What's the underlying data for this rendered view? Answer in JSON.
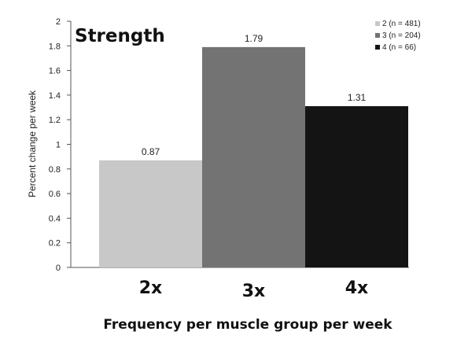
{
  "chart_data": {
    "type": "bar",
    "title": "Strength",
    "xlabel": "Frequency per muscle group per week",
    "ylabel": "Percent change per week",
    "categories": [
      "2x",
      "3x",
      "4x"
    ],
    "values": [
      0.87,
      1.79,
      1.31
    ],
    "value_labels": [
      "0.87",
      "1.79",
      "1.31"
    ],
    "ylim": [
      0,
      2
    ],
    "yticks": [
      0,
      0.2,
      0.4,
      0.6,
      0.8,
      1,
      1.2,
      1.4,
      1.6,
      1.8,
      2
    ],
    "ytick_labels": [
      "0",
      "0.2",
      "0.4",
      "0.6",
      "0.8",
      "1",
      "1.2",
      "1.4",
      "1.6",
      "1.8",
      "2"
    ],
    "grid": false,
    "legend_position": "top-right",
    "legend": [
      {
        "label": "2 (n = 481)",
        "color": "#c8c8c8"
      },
      {
        "label": "3 (n = 204)",
        "color": "#737373"
      },
      {
        "label": "4 (n = 66)",
        "color": "#141414"
      }
    ],
    "colors": [
      "#c8c8c8",
      "#737373",
      "#141414"
    ]
  }
}
